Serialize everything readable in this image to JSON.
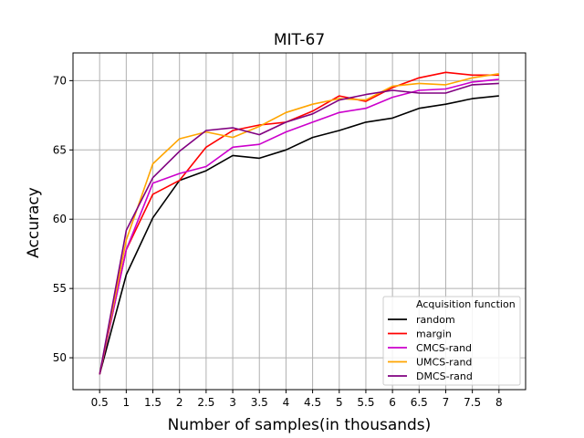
{
  "chart_data": {
    "type": "line",
    "title": "MIT-67",
    "xlabel": "Number of samples(in thousands)",
    "ylabel": "Accuracy",
    "grid": true,
    "x": [
      0.5,
      1,
      1.5,
      2,
      2.5,
      3,
      3.5,
      4,
      4.5,
      5,
      5.5,
      6,
      6.5,
      7,
      7.5,
      8
    ],
    "x_tick_labels": [
      "0.5",
      "1",
      "1.5",
      "2",
      "2.5",
      "3",
      "3.5",
      "4",
      "4.5",
      "5",
      "5.5",
      "6",
      "6.5",
      "7",
      "7.5",
      "8"
    ],
    "xlim": [
      0.0,
      8.5
    ],
    "ylim": [
      47.7,
      72.0
    ],
    "y_ticks": [
      50,
      55,
      60,
      65,
      70
    ],
    "y_tick_labels": [
      "50",
      "55",
      "60",
      "65",
      "70"
    ],
    "legend": {
      "title": "Acquisition function",
      "position": "lower-right"
    },
    "series": [
      {
        "name": "random",
        "color": "#000000",
        "values": [
          48.8,
          56.0,
          60.1,
          62.8,
          63.5,
          64.6,
          64.4,
          65.0,
          65.9,
          66.4,
          67.0,
          67.3,
          68.0,
          68.3,
          68.7,
          68.9
        ]
      },
      {
        "name": "margin",
        "color": "#ff0000",
        "values": [
          48.8,
          57.8,
          61.8,
          62.8,
          65.2,
          66.4,
          66.8,
          67.0,
          67.8,
          68.9,
          68.5,
          69.5,
          70.2,
          70.6,
          70.4,
          70.4
        ]
      },
      {
        "name": "CMCS-rand",
        "color": "#cc00cc",
        "values": [
          48.8,
          57.8,
          62.6,
          63.3,
          63.8,
          65.2,
          65.4,
          66.3,
          67.0,
          67.7,
          68.0,
          68.8,
          69.3,
          69.4,
          69.9,
          70.1
        ]
      },
      {
        "name": "UMCS-rand",
        "color": "#ffa500",
        "values": [
          48.8,
          58.5,
          64.0,
          65.8,
          66.3,
          65.9,
          66.7,
          67.7,
          68.3,
          68.7,
          68.6,
          69.6,
          69.8,
          69.7,
          70.2,
          70.5
        ]
      },
      {
        "name": "DMCS-rand",
        "color": "#800080",
        "values": [
          48.8,
          59.2,
          63.0,
          64.9,
          66.4,
          66.6,
          66.1,
          67.0,
          67.6,
          68.6,
          69.0,
          69.3,
          69.1,
          69.1,
          69.7,
          69.8
        ]
      }
    ]
  }
}
